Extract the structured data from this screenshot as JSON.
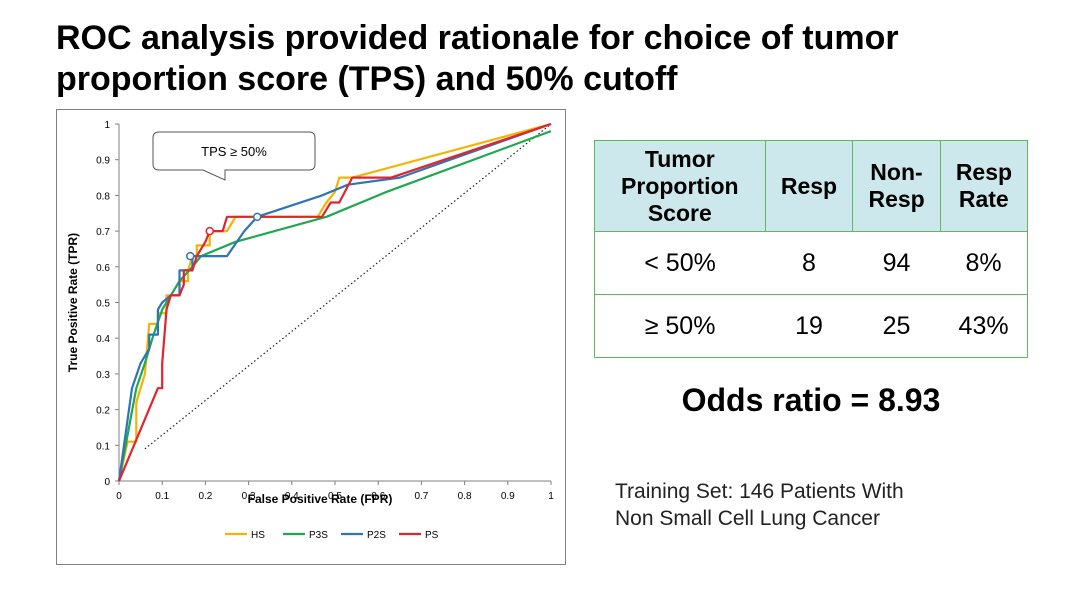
{
  "slide": {
    "title_line1": "ROC analysis provided rationale for choice of tumor",
    "title_line2": "proportion score (TPS) and 50% cutoff"
  },
  "chart_data": {
    "type": "line",
    "xlabel": "False Positive Rate (FPR)",
    "ylabel": "True Positive Rate (TPR)",
    "xlim": [
      0,
      1
    ],
    "ylim": [
      0,
      1
    ],
    "x_ticks": [
      "0",
      "0.1",
      "0.2",
      "0.3",
      "0.4",
      "0.5",
      "0.6",
      "0.7",
      "0.8",
      "0.9",
      "1"
    ],
    "y_ticks": [
      "0",
      "0.1",
      "0.2",
      "0.3",
      "0.4",
      "0.5",
      "0.6",
      "0.7",
      "0.8",
      "0.9",
      "1"
    ],
    "grid": false,
    "legend_position": "bottom",
    "annotation": "TPS ≥ 50%",
    "series": [
      {
        "name": "HS",
        "color": "#f5b400",
        "points": [
          [
            0,
            0
          ],
          [
            0.02,
            0.11
          ],
          [
            0.04,
            0.11
          ],
          [
            0.04,
            0.22
          ],
          [
            0.06,
            0.3
          ],
          [
            0.07,
            0.44
          ],
          [
            0.09,
            0.44
          ],
          [
            0.09,
            0.47
          ],
          [
            0.11,
            0.47
          ],
          [
            0.11,
            0.52
          ],
          [
            0.14,
            0.52
          ],
          [
            0.14,
            0.56
          ],
          [
            0.16,
            0.56
          ],
          [
            0.16,
            0.59
          ],
          [
            0.17,
            0.63
          ],
          [
            0.18,
            0.63
          ],
          [
            0.18,
            0.66
          ],
          [
            0.21,
            0.66
          ],
          [
            0.21,
            0.7
          ],
          [
            0.25,
            0.7
          ],
          [
            0.27,
            0.74
          ],
          [
            0.46,
            0.74
          ],
          [
            0.48,
            0.78
          ],
          [
            0.5,
            0.81
          ],
          [
            0.51,
            0.85
          ],
          [
            0.54,
            0.85
          ],
          [
            1,
            1
          ]
        ],
        "markers": []
      },
      {
        "name": "P3S",
        "color": "#1fa84f",
        "points": [
          [
            0,
            0
          ],
          [
            0.04,
            0.26
          ],
          [
            0.06,
            0.33
          ],
          [
            0.08,
            0.41
          ],
          [
            0.1,
            0.48
          ],
          [
            0.12,
            0.52
          ],
          [
            0.14,
            0.56
          ],
          [
            0.17,
            0.6
          ],
          [
            0.19,
            0.63
          ],
          [
            0.27,
            0.67
          ],
          [
            0.48,
            0.74
          ],
          [
            0.62,
            0.81
          ],
          [
            1,
            0.98
          ]
        ],
        "markers": []
      },
      {
        "name": "P2S",
        "color": "#2e75b6",
        "points": [
          [
            0,
            0
          ],
          [
            0.03,
            0.26
          ],
          [
            0.05,
            0.33
          ],
          [
            0.07,
            0.37
          ],
          [
            0.07,
            0.41
          ],
          [
            0.09,
            0.41
          ],
          [
            0.09,
            0.48
          ],
          [
            0.1,
            0.5
          ],
          [
            0.12,
            0.52
          ],
          [
            0.14,
            0.52
          ],
          [
            0.14,
            0.59
          ],
          [
            0.17,
            0.59
          ],
          [
            0.17,
            0.63
          ],
          [
            0.25,
            0.63
          ],
          [
            0.29,
            0.7
          ],
          [
            0.32,
            0.74
          ],
          [
            0.47,
            0.8
          ],
          [
            0.53,
            0.83
          ],
          [
            0.65,
            0.85
          ],
          [
            1,
            1
          ]
        ],
        "markers": [
          [
            0.165,
            0.63
          ],
          [
            0.32,
            0.74
          ]
        ]
      },
      {
        "name": "PS",
        "color": "#e3232e",
        "points": [
          [
            0,
            0
          ],
          [
            0.09,
            0.26
          ],
          [
            0.1,
            0.26
          ],
          [
            0.1,
            0.33
          ],
          [
            0.11,
            0.48
          ],
          [
            0.12,
            0.52
          ],
          [
            0.14,
            0.52
          ],
          [
            0.15,
            0.55
          ],
          [
            0.15,
            0.59
          ],
          [
            0.17,
            0.59
          ],
          [
            0.18,
            0.63
          ],
          [
            0.2,
            0.67
          ],
          [
            0.21,
            0.7
          ],
          [
            0.24,
            0.7
          ],
          [
            0.25,
            0.74
          ],
          [
            0.47,
            0.74
          ],
          [
            0.49,
            0.78
          ],
          [
            0.51,
            0.78
          ],
          [
            0.54,
            0.85
          ],
          [
            0.63,
            0.85
          ],
          [
            1,
            1
          ]
        ],
        "markers": [
          [
            0.21,
            0.7
          ]
        ]
      }
    ],
    "reference_line": [
      [
        0.06,
        0.09
      ],
      [
        1,
        1
      ]
    ]
  },
  "table": {
    "headers": [
      "Tumor Proportion Score",
      "Resp",
      "Non-Resp",
      "Resp Rate"
    ],
    "rows": [
      [
        "< 50%",
        "8",
        "94",
        "8%"
      ],
      [
        "≥ 50%",
        "19",
        "25",
        "43%"
      ]
    ]
  },
  "odds_ratio_text": "Odds ratio = 8.93",
  "note": {
    "line1": "Training Set: 146 Patients With",
    "line2": "Non Small Cell Lung Cancer"
  }
}
